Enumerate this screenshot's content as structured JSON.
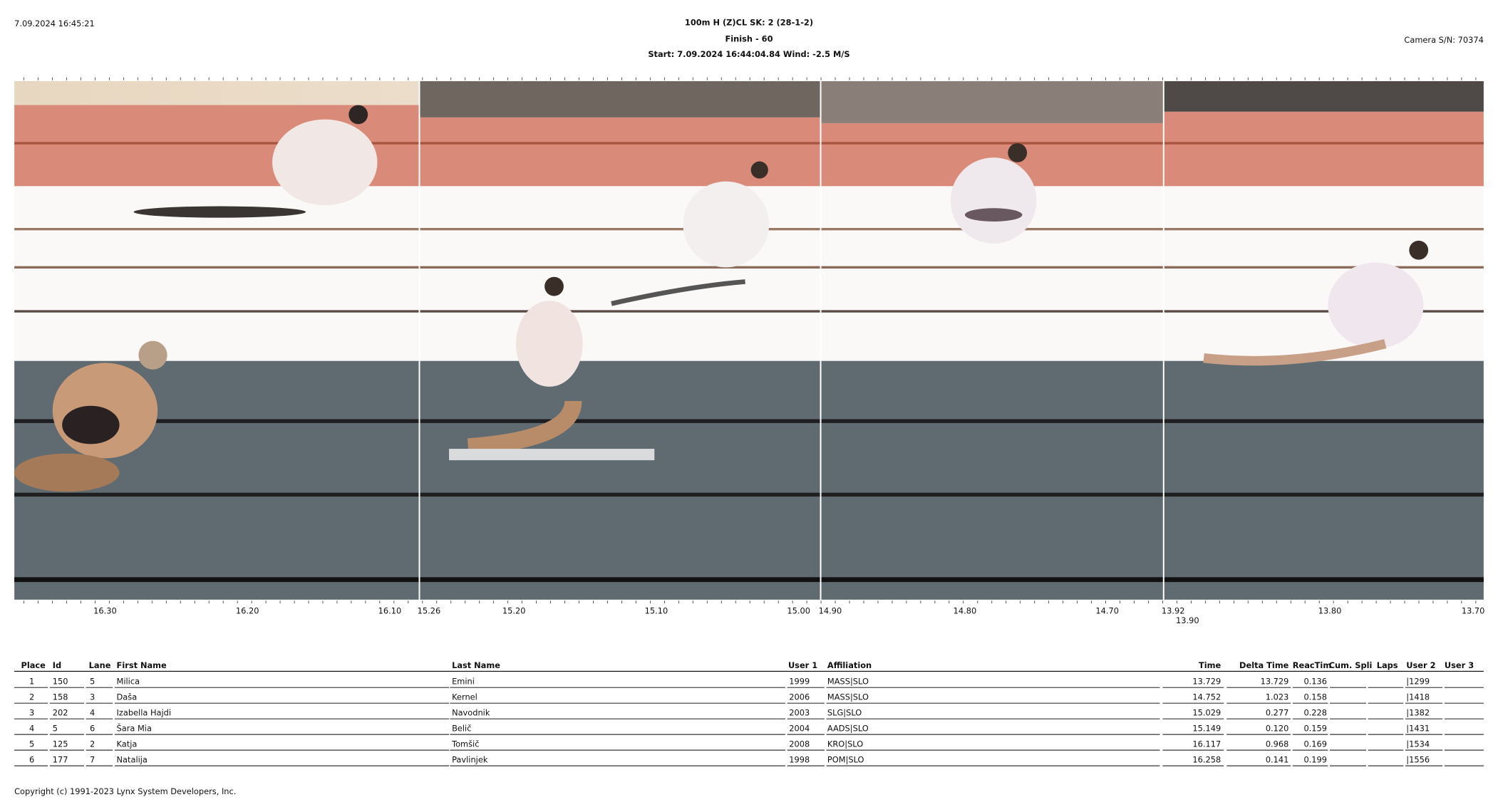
{
  "header": {
    "timestamp": "7.09.2024 16:45:21",
    "title": "100m H (Z)CL   SK: 2 (28-1-2)",
    "subtitle": "Finish - 60",
    "start_line": "Start: 7.09.2024 16:44:04.84    Wind: -2.5 M/S",
    "camera": "Camera S/N: 70374"
  },
  "timescale": {
    "labels": [
      "16.30",
      "16.20",
      "16.10",
      "15.26",
      "15.20",
      "15.10",
      "15.00",
      "14.90",
      "14.80",
      "14.70",
      "13.92",
      "13.90",
      "13.80",
      "13.70"
    ]
  },
  "table": {
    "headers": [
      "Place",
      "Id",
      "Lane",
      "First Name",
      "Last Name",
      "User 1",
      "Affiliation",
      "Time",
      "Delta Time",
      "ReacTim",
      "Cum. Spli",
      "Laps",
      "User 2",
      "User 3"
    ],
    "rows": [
      {
        "place": "1",
        "id": "150",
        "lane": "5",
        "first_name": "Milica",
        "last_name": "Emini",
        "user1": "1999",
        "affiliation": "MASS|SLO",
        "time": "13.729",
        "delta_time": "13.729",
        "reac_time": "0.136",
        "user2": "|1299"
      },
      {
        "place": "2",
        "id": "158",
        "lane": "3",
        "first_name": "Daša",
        "last_name": "Kernel",
        "user1": "2006",
        "affiliation": "MASS|SLO",
        "time": "14.752",
        "delta_time": "1.023",
        "reac_time": "0.158",
        "user2": "|1418"
      },
      {
        "place": "3",
        "id": "202",
        "lane": "4",
        "first_name": "Izabella Hajdi",
        "last_name": "Navodnik",
        "user1": "2003",
        "affiliation": "SLG|SLO",
        "time": "15.029",
        "delta_time": "0.277",
        "reac_time": "0.228",
        "user2": "|1382"
      },
      {
        "place": "4",
        "id": "5",
        "lane": "6",
        "first_name": "Šara Mia",
        "last_name": "Belič",
        "user1": "2004",
        "affiliation": "AADS|SLO",
        "time": "15.149",
        "delta_time": "0.120",
        "reac_time": "0.159",
        "user2": "|1431"
      },
      {
        "place": "5",
        "id": "125",
        "lane": "2",
        "first_name": "Katja",
        "last_name": "Tomšič",
        "user1": "2008",
        "affiliation": "KRO|SLO",
        "time": "16.117",
        "delta_time": "0.968",
        "reac_time": "0.169",
        "user2": "|1534"
      },
      {
        "place": "6",
        "id": "177",
        "lane": "7",
        "first_name": "Natalija",
        "last_name": "Pavlinjek",
        "user1": "1998",
        "affiliation": "POM|SLO",
        "time": "16.258",
        "delta_time": "0.141",
        "reac_time": "0.199",
        "user2": "|1556"
      }
    ]
  },
  "footer": {
    "copyright": "Copyright (c) 1991-2023 Lynx System Developers, Inc."
  }
}
